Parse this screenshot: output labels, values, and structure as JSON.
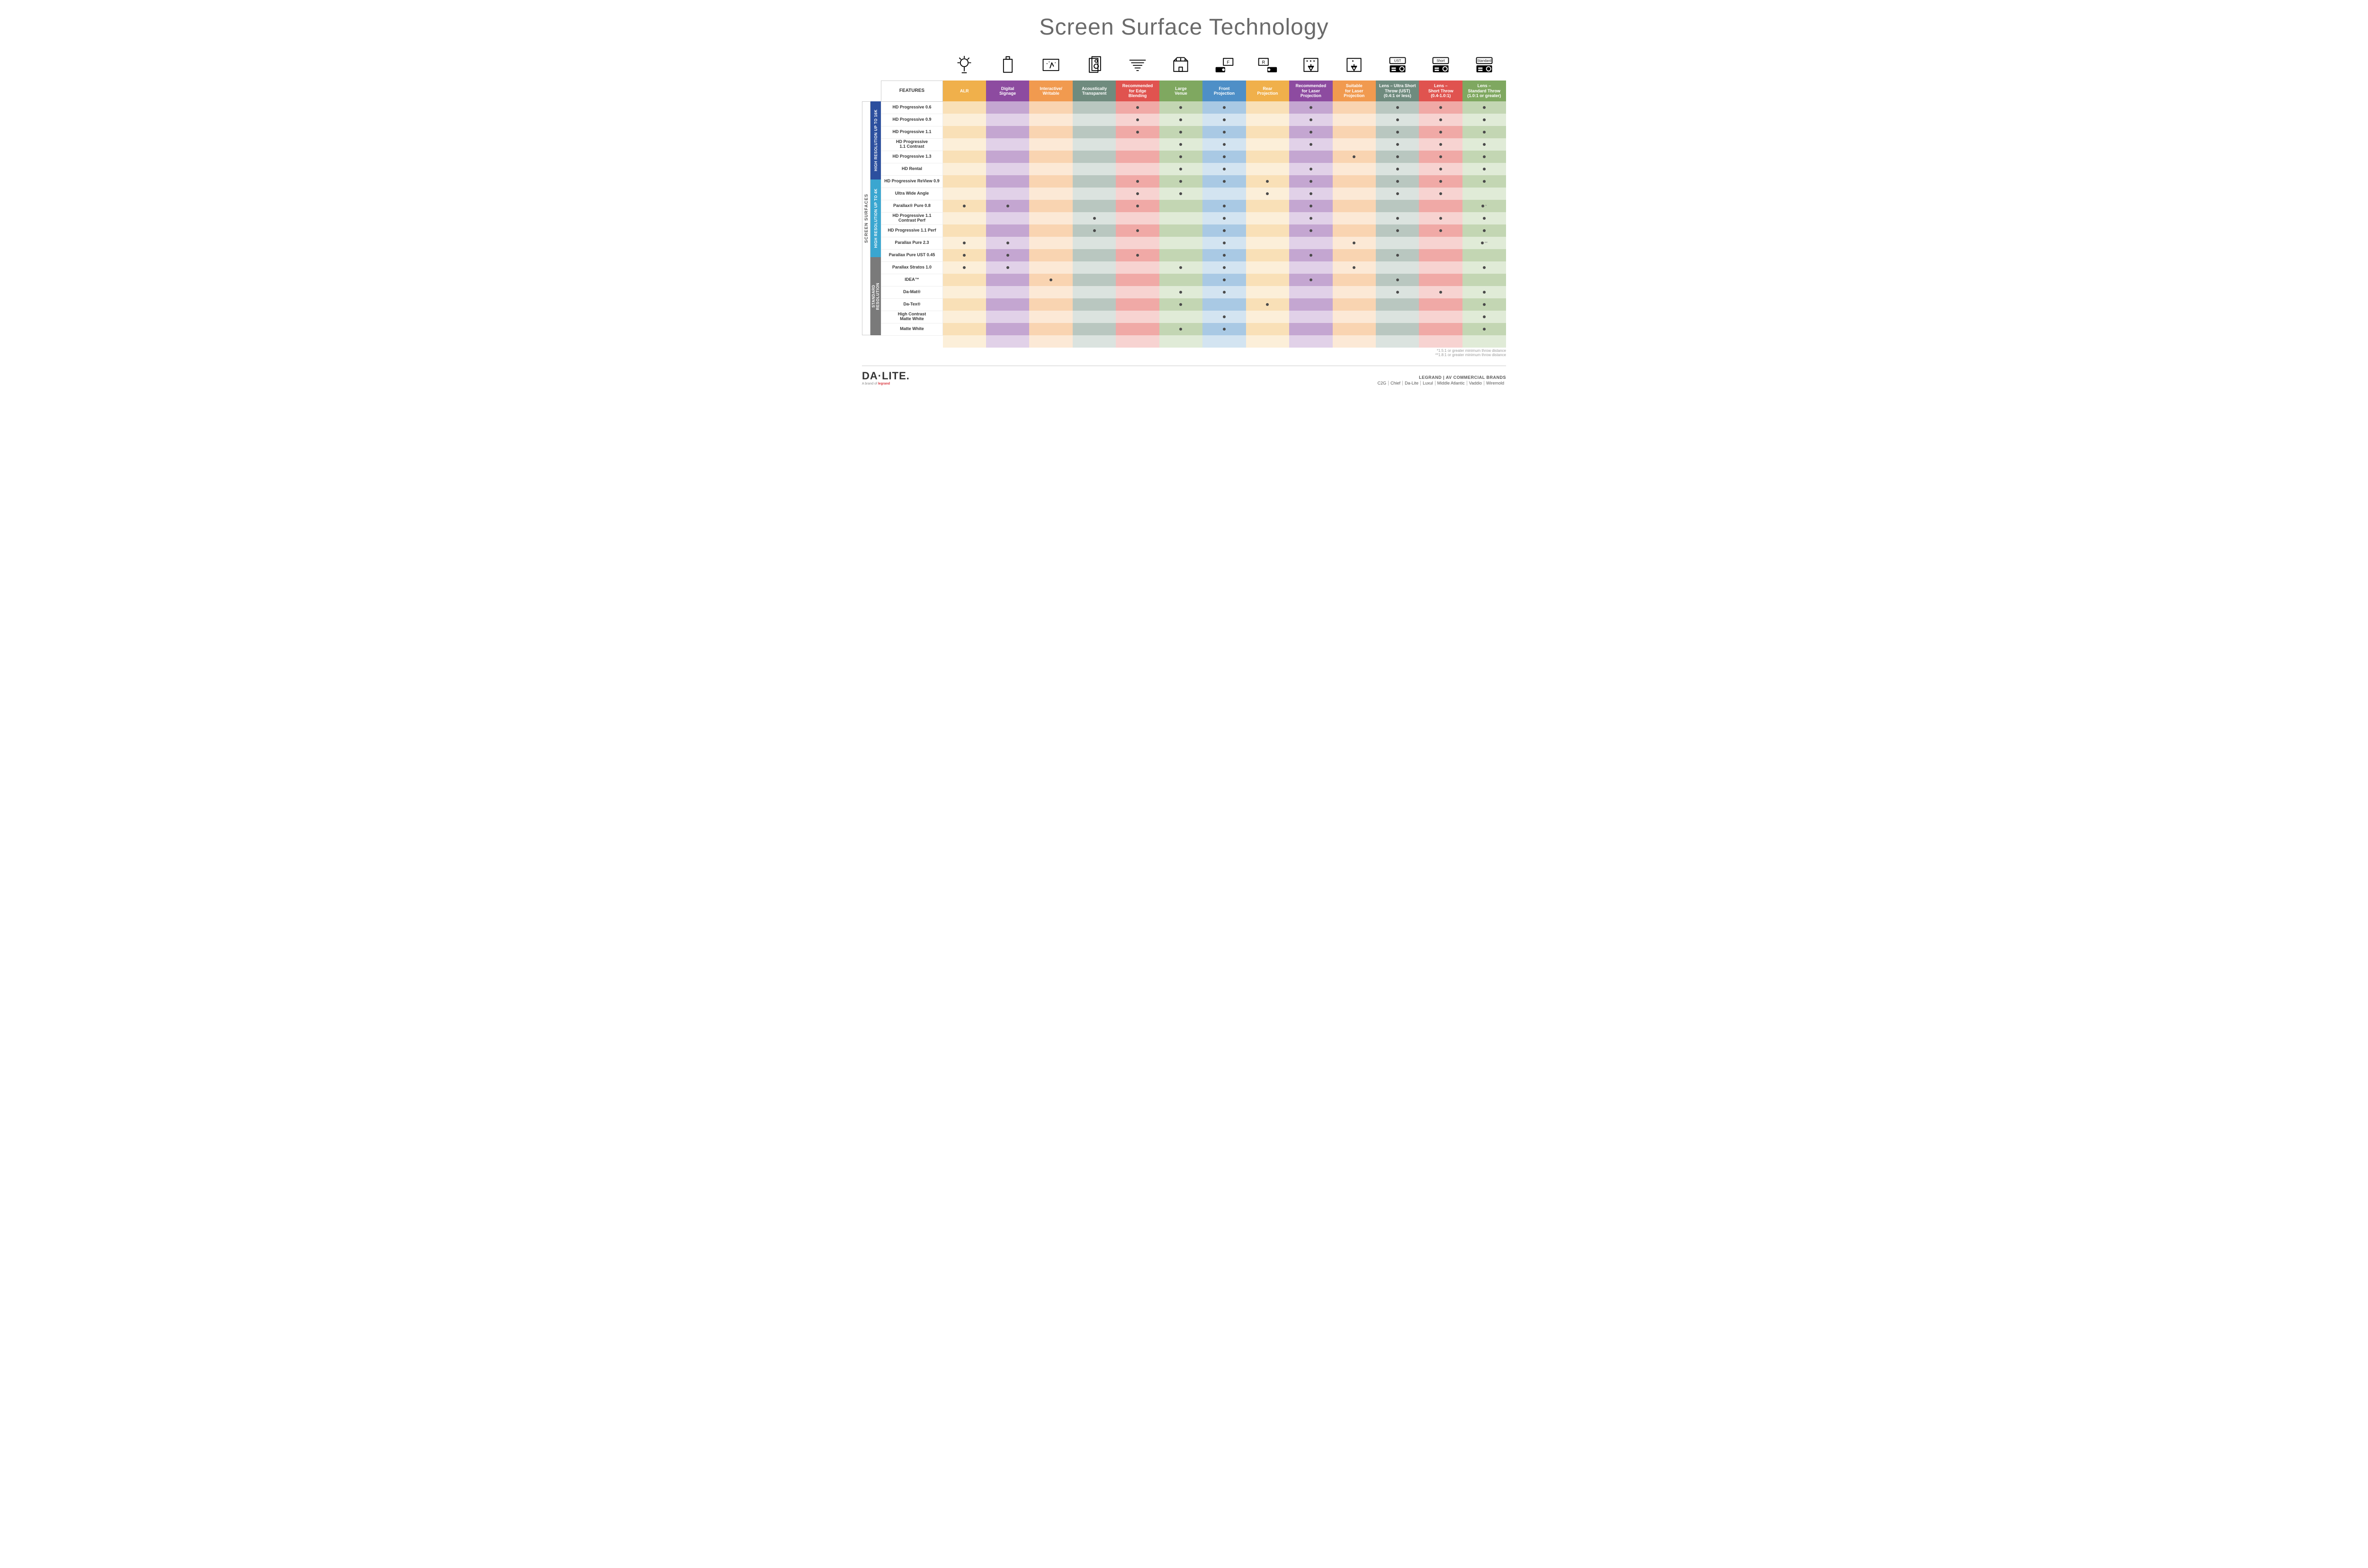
{
  "title": "Screen Surface Technology",
  "columns": [
    {
      "key": "alr",
      "label": "ALR",
      "bg": "#f0b04b",
      "light": "#f9e0b7",
      "lighter": "#fcefd9"
    },
    {
      "key": "signage",
      "label": "Digital\nSignage",
      "bg": "#8d4ba0",
      "light": "#c4a6d1",
      "lighter": "#e1d1e8"
    },
    {
      "key": "writable",
      "label": "Interactive/\nWritable",
      "bg": "#f19a4f",
      "light": "#f9d4b1",
      "lighter": "#fce9d6"
    },
    {
      "key": "acoustic",
      "label": "Acoustically\nTransparent",
      "bg": "#6f8b7e",
      "light": "#b9c7c0",
      "lighter": "#dbe3df"
    },
    {
      "key": "edge",
      "label": "Recommended\nfor Edge\nBlending",
      "bg": "#e0534f",
      "light": "#f0a9a6",
      "lighter": "#f7d3d1"
    },
    {
      "key": "venue",
      "label": "Large\nVenue",
      "bg": "#7fa860",
      "light": "#c3d6b3",
      "lighter": "#e0ebd7"
    },
    {
      "key": "front",
      "label": "Front\nProjection",
      "bg": "#4e8fc7",
      "light": "#a9c9e4",
      "lighter": "#d3e4f1"
    },
    {
      "key": "rear",
      "label": "Rear\nProjection",
      "bg": "#f0b04b",
      "light": "#f9e0b7",
      "lighter": "#fcefd9"
    },
    {
      "key": "reclaser",
      "label": "Recommended\nfor Laser\nProjection",
      "bg": "#8d4ba0",
      "light": "#c4a6d1",
      "lighter": "#e1d1e8"
    },
    {
      "key": "suitlaser",
      "label": "Suitable\nfor Laser\nProjection",
      "bg": "#f19a4f",
      "light": "#f9d4b1",
      "lighter": "#fce9d6"
    },
    {
      "key": "ust",
      "label": "Lens – Ultra Short\nThrow (UST)\n(0.4:1 or less)",
      "bg": "#6f8b7e",
      "light": "#b9c7c0",
      "lighter": "#dbe3df"
    },
    {
      "key": "short",
      "label": "Lens –\nShort Throw\n(0.4-1.0:1)",
      "bg": "#e0534f",
      "light": "#f0a9a6",
      "lighter": "#f7d3d1"
    },
    {
      "key": "std",
      "label": "Lens –\nStandard Throw\n(1.0:1 or greater)",
      "bg": "#7fa860",
      "light": "#c3d6b3",
      "lighter": "#e0ebd7"
    }
  ],
  "features_label": "FEATURES",
  "side_label": "SCREEN SURFACES",
  "groups": [
    {
      "label": "HIGH RESOLUTION UP TO 16K",
      "bg": "#2c4f9e",
      "rows": 9
    },
    {
      "label": "HIGH RESOLUTION UP TO 4K",
      "bg": "#3aa6d0",
      "rows": 6
    },
    {
      "label": "STANDARD\nRESOLUTION",
      "bg": "#7a7a7a",
      "rows": 4
    }
  ],
  "rows": [
    {
      "label": "HD Progressive 0.6",
      "dots": {
        "edge": 1,
        "venue": 1,
        "front": 1,
        "reclaser": 1,
        "ust": 1,
        "short": 1,
        "std": 1
      }
    },
    {
      "label": "HD Progressive 0.9",
      "dots": {
        "edge": 1,
        "venue": 1,
        "front": 1,
        "reclaser": 1,
        "ust": 1,
        "short": 1,
        "std": 1
      }
    },
    {
      "label": "HD Progressive 1.1",
      "dots": {
        "edge": 1,
        "venue": 1,
        "front": 1,
        "reclaser": 1,
        "ust": 1,
        "short": 1,
        "std": 1
      }
    },
    {
      "label": "HD Progressive\n1.1 Contrast",
      "dots": {
        "venue": 1,
        "front": 1,
        "reclaser": 1,
        "ust": 1,
        "short": 1,
        "std": 1
      }
    },
    {
      "label": "HD Progressive 1.3",
      "dots": {
        "venue": 1,
        "front": 1,
        "suitlaser": 1,
        "ust": 1,
        "short": 1,
        "std": 1
      }
    },
    {
      "label": "HD Rental",
      "dots": {
        "venue": 1,
        "front": 1,
        "reclaser": 1,
        "ust": 1,
        "short": 1,
        "std": 1
      }
    },
    {
      "label": "HD Progressive ReView 0.9",
      "dots": {
        "edge": 1,
        "venue": 1,
        "front": 1,
        "rear": 1,
        "reclaser": 1,
        "ust": 1,
        "short": 1,
        "std": 1
      }
    },
    {
      "label": "Ultra Wide Angle",
      "dots": {
        "edge": 1,
        "venue": 1,
        "rear": 1,
        "reclaser": 1,
        "ust": 1,
        "short": 1
      }
    },
    {
      "label": "Parallax® Pure 0.8",
      "dots": {
        "alr": 1,
        "signage": 1,
        "edge": 1,
        "front": 1,
        "reclaser": 1,
        "std": "*"
      }
    },
    {
      "label": "HD Progressive 1.1\nContrast Perf",
      "dots": {
        "acoustic": 1,
        "front": 1,
        "reclaser": 1,
        "ust": 1,
        "short": 1,
        "std": 1
      }
    },
    {
      "label": "HD Progressive 1.1 Perf",
      "dots": {
        "acoustic": 1,
        "edge": 1,
        "front": 1,
        "reclaser": 1,
        "ust": 1,
        "short": 1,
        "std": 1
      }
    },
    {
      "label": "Parallax Pure 2.3",
      "dots": {
        "alr": 1,
        "signage": 1,
        "front": 1,
        "suitlaser": 1,
        "std": "**"
      }
    },
    {
      "label": "Parallax Pure UST 0.45",
      "dots": {
        "alr": 1,
        "signage": 1,
        "edge": 1,
        "front": 1,
        "reclaser": 1,
        "ust": 1
      }
    },
    {
      "label": "Parallax Stratos 1.0",
      "dots": {
        "alr": 1,
        "signage": 1,
        "venue": 1,
        "front": 1,
        "suitlaser": 1,
        "std": 1
      }
    },
    {
      "label": "IDEA™",
      "dots": {
        "writable": 1,
        "front": 1,
        "reclaser": 1,
        "ust": 1
      }
    },
    {
      "label": "Da-Mat®",
      "dots": {
        "venue": 1,
        "front": 1,
        "ust": 1,
        "short": 1,
        "std": 1
      }
    },
    {
      "label": "Da-Tex®",
      "dots": {
        "venue": 1,
        "rear": 1,
        "std": 1
      }
    },
    {
      "label": "High Contrast\nMatte White",
      "dots": {
        "front": 1,
        "std": 1
      }
    },
    {
      "label": "Matte White",
      "dots": {
        "venue": 1,
        "front": 1,
        "std": 1
      }
    }
  ],
  "footnotes": [
    "*1.5:1 or greater minimum throw distance",
    "**1.8:1 or greater minimum throw distance"
  ],
  "footer": {
    "logo": "DA·LITE.",
    "logo_sub_prefix": "A brand of ",
    "logo_sub_brand": "legrand",
    "right_top": "LEGRAND | AV COMMERCIAL BRANDS",
    "brands": [
      "C2G",
      "Chief",
      "Da-Lite",
      "Luxul",
      "Middle Atlantic",
      "Vaddio",
      "Wiremold"
    ]
  },
  "icons": {
    "labels": [
      "UST",
      "Short",
      "Standard"
    ]
  }
}
